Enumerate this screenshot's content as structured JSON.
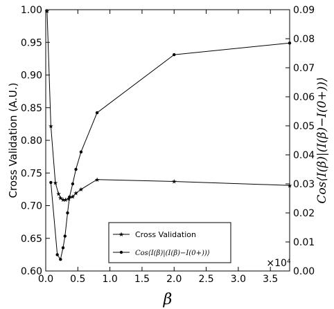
{
  "chart_data": {
    "type": "line",
    "xlabel": "β",
    "x_offset_label": "×10⁴",
    "xlim": [
      0,
      3.8
    ],
    "x_ticks": [
      "0.0",
      "0.5",
      "1.0",
      "1.5",
      "2.0",
      "2.5",
      "3.0",
      "3.5"
    ],
    "x_tick_values": [
      0.0,
      0.5,
      1.0,
      1.5,
      2.0,
      2.5,
      3.0,
      3.5
    ],
    "ylabel_left": "Cross Validation (A.U.)",
    "ylim_left": [
      0.6,
      1.0
    ],
    "y_ticks_left": [
      "0.60",
      "0.65",
      "0.70",
      "0.75",
      "0.80",
      "0.85",
      "0.90",
      "0.95",
      "1.00"
    ],
    "y_tick_values_left": [
      0.6,
      0.65,
      0.7,
      0.75,
      0.8,
      0.85,
      0.9,
      0.95,
      1.0
    ],
    "ylabel_right": "Cos⟨I(β)|(I(β)−I(0+))⟩",
    "ylim_right": [
      0.0,
      0.09
    ],
    "y_ticks_right": [
      "0.00",
      "0.01",
      "0.02",
      "0.03",
      "0.04",
      "0.05",
      "0.06",
      "0.07",
      "0.08",
      "0.09"
    ],
    "y_tick_values_right": [
      0.0,
      0.01,
      0.02,
      0.03,
      0.04,
      0.05,
      0.06,
      0.07,
      0.08,
      0.09
    ],
    "legend_position": "bottom-center",
    "series": [
      {
        "name": "Cross Validation",
        "axis": "left",
        "marker": "star",
        "x": [
          0.02,
          0.08,
          0.15,
          0.2,
          0.23,
          0.27,
          0.31,
          0.36,
          0.42,
          0.47,
          0.55,
          0.8,
          2.0,
          3.8
        ],
        "y": [
          0.998,
          0.822,
          0.735,
          0.718,
          0.712,
          0.709,
          0.709,
          0.711,
          0.714,
          0.719,
          0.725,
          0.74,
          0.737,
          0.731
        ]
      },
      {
        "name": "Cos⟨I(β)|(I(β)−I(0+))⟩",
        "axis": "right",
        "marker": "dot",
        "x": [
          0.08,
          0.18,
          0.23,
          0.27,
          0.3,
          0.34,
          0.37,
          0.42,
          0.47,
          0.55,
          0.8,
          2.0,
          3.8
        ],
        "y": [
          0.0305,
          0.0056,
          0.004,
          0.008,
          0.012,
          0.02,
          0.0255,
          0.03,
          0.035,
          0.041,
          0.0545,
          0.0745,
          0.0785
        ]
      }
    ]
  }
}
